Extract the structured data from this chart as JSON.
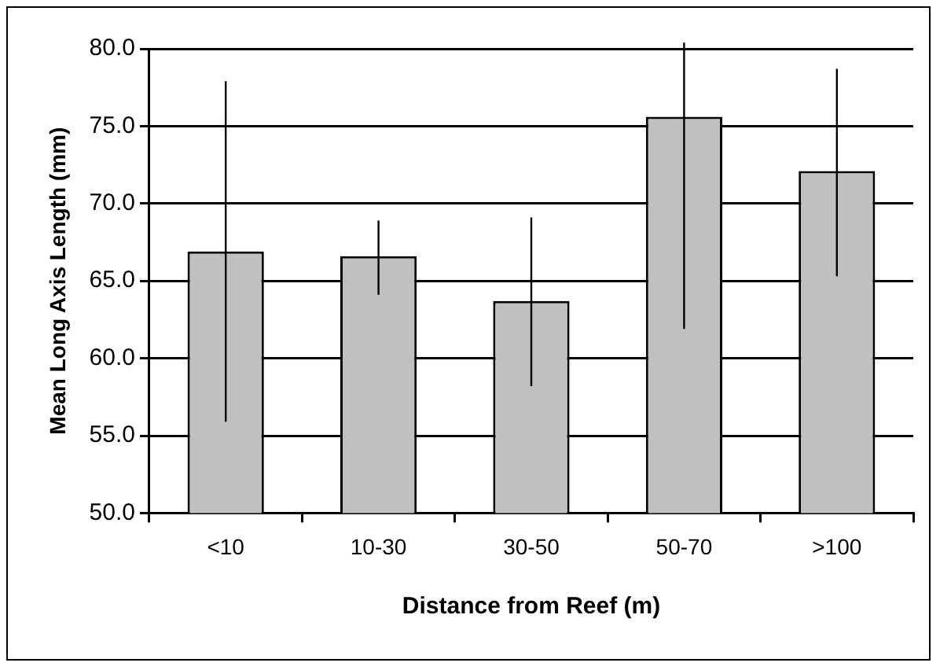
{
  "chart_data": {
    "type": "bar",
    "xlabel": "Distance from Reef (m)",
    "ylabel": "Mean Long Axis Length (mm)",
    "categories": [
      "<10",
      "10-30",
      "30-50",
      "50-70",
      ">100"
    ],
    "values": [
      66.9,
      66.6,
      63.7,
      75.6,
      72.1
    ],
    "errors": [
      [
        55.9,
        77.9
      ],
      [
        64.1,
        68.9
      ],
      [
        58.2,
        69.1
      ],
      [
        61.9,
        80.4
      ],
      [
        65.3,
        78.7
      ]
    ],
    "color": "#c0c0c0",
    "ylim": [
      50,
      80
    ],
    "yticks": [
      {
        "value": 50,
        "label": "50.0"
      },
      {
        "value": 55,
        "label": "55.0"
      },
      {
        "value": 60,
        "label": "60.0"
      },
      {
        "value": 65,
        "label": "65.0"
      },
      {
        "value": 70,
        "label": "70.0"
      },
      {
        "value": 75,
        "label": "75.0"
      },
      {
        "value": 80,
        "label": "80.0"
      }
    ],
    "grid": "y",
    "legend": false
  }
}
